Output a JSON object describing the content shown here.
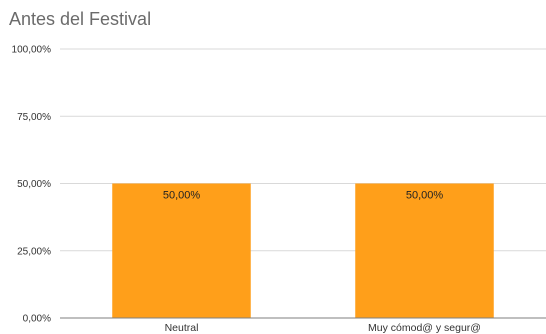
{
  "chart_data": {
    "type": "bar",
    "title": "Antes del Festival",
    "categories": [
      "Neutral",
      "Muy cómod@ y segur@"
    ],
    "values": [
      50,
      50
    ],
    "value_labels": [
      "50,00%",
      "50,00%"
    ],
    "y_ticks": [
      {
        "value": 100,
        "label": "100,00%"
      },
      {
        "value": 75,
        "label": "75,00%"
      },
      {
        "value": 50,
        "label": "50,00%"
      },
      {
        "value": 25,
        "label": "25,00%"
      },
      {
        "value": 0,
        "label": "0,00%"
      }
    ],
    "ylim": [
      0,
      100
    ],
    "xlabel": "",
    "ylabel": "",
    "grid": true,
    "bar_color": "#ff9f1a",
    "grid_color": "#d9d9d9",
    "axis_color": "#7f7f7f"
  }
}
